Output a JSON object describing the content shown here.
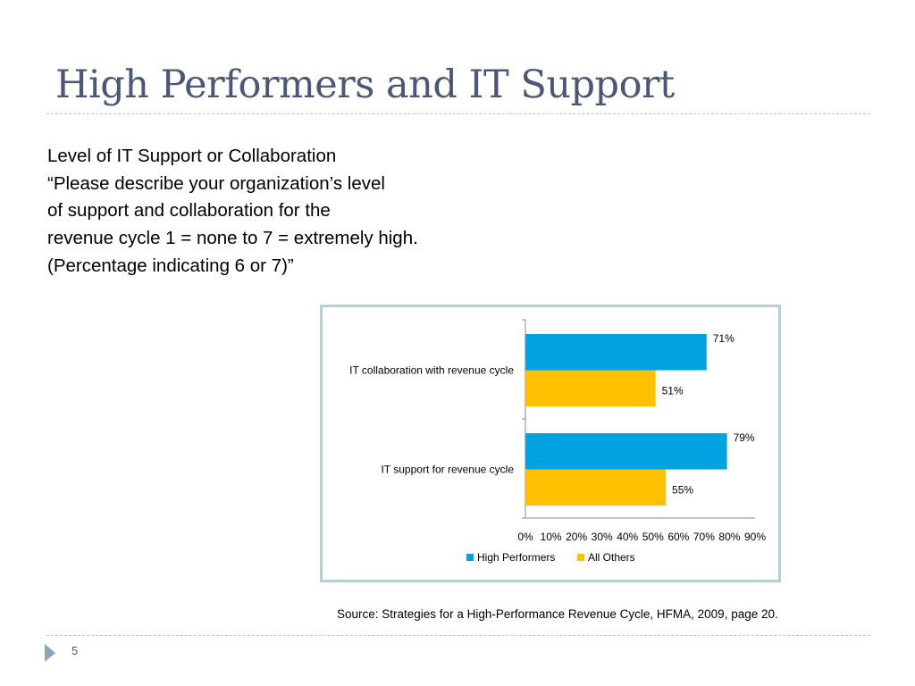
{
  "slide": {
    "title": "High Performers and IT Support",
    "subtitle_lines": [
      "Level of IT Support or Collaboration",
      "“Please describe your organization’s level",
      "of support and collaboration for the",
      "revenue cycle 1 = none to 7 = extremely high.",
      "(Percentage indicating 6 or 7)”"
    ],
    "source": "Source:  Strategies for a High-Performance Revenue Cycle, HFMA, 2009, page 20.",
    "page_number": "5"
  },
  "colors": {
    "title": "#4a5777",
    "high_performers": "#00a2e0",
    "all_others": "#ffc000",
    "chart_border": "#b3cfdb"
  },
  "chart_data": {
    "type": "bar",
    "orientation": "horizontal",
    "categories": [
      "IT collaboration with revenue cycle",
      "IT support for revenue cycle"
    ],
    "series": [
      {
        "name": "High Performers",
        "values": [
          71,
          79
        ],
        "color": "#00a2e0"
      },
      {
        "name": "All Others",
        "values": [
          51,
          55
        ],
        "color": "#ffc000"
      }
    ],
    "data_labels": [
      [
        "71%",
        "51%"
      ],
      [
        "79%",
        "55%"
      ]
    ],
    "x_ticks": [
      "0%",
      "10%",
      "20%",
      "30%",
      "40%",
      "50%",
      "60%",
      "70%",
      "80%",
      "90%"
    ],
    "xlim": [
      0,
      90
    ],
    "grid": false,
    "legend_position": "bottom"
  }
}
